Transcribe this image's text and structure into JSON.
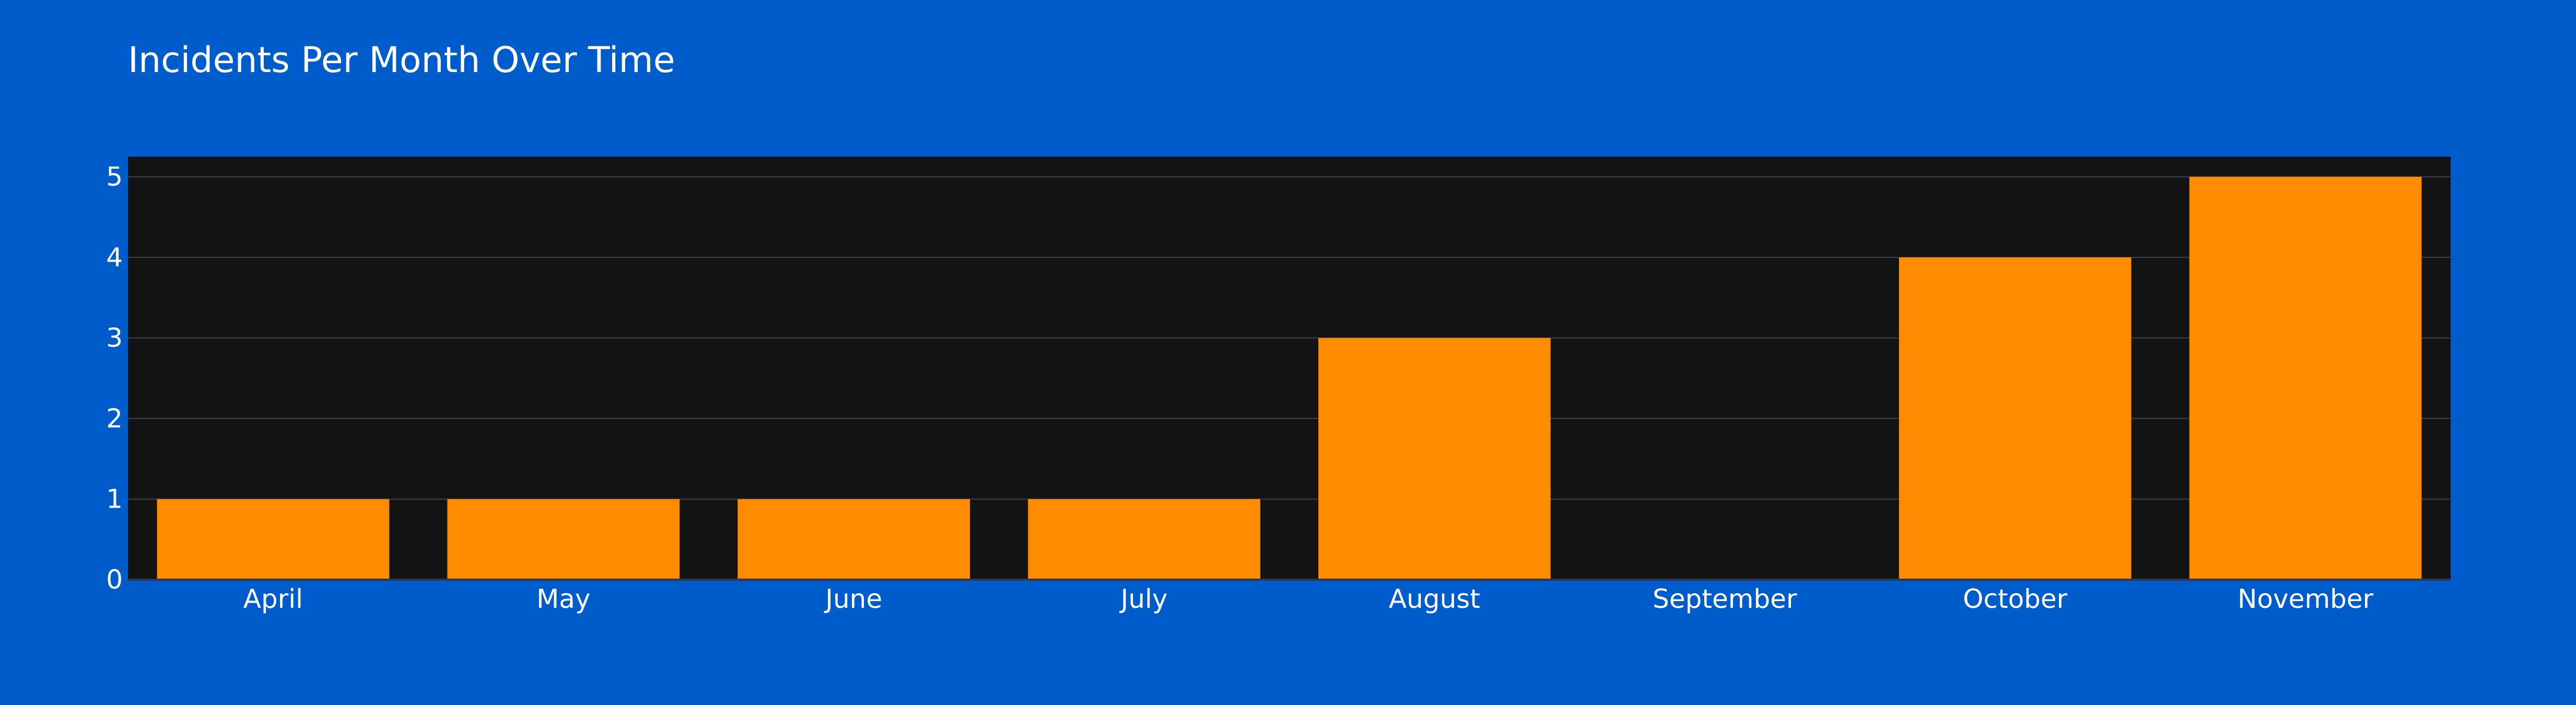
{
  "colors": {
    "background": "#005CCA",
    "plot_background": "#131313",
    "bar": "#FF8C00",
    "grid": "#3A4150",
    "text": "#FFFFFF"
  },
  "chart_data": {
    "type": "bar",
    "title": "Incidents Per Month Over Time",
    "xlabel": "",
    "ylabel": "",
    "categories": [
      "April",
      "May",
      "June",
      "July",
      "August",
      "September",
      "October",
      "November"
    ],
    "values": [
      1,
      1,
      1,
      1,
      3,
      0,
      4,
      5
    ],
    "ylim": [
      0,
      5.25
    ],
    "yticks": [
      0,
      1,
      2,
      3,
      4,
      5
    ],
    "grid": true,
    "legend": "none"
  }
}
